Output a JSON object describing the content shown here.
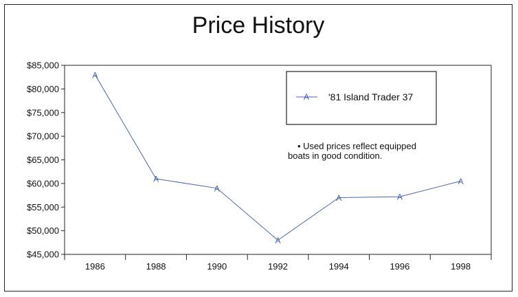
{
  "chart_data": {
    "type": "line",
    "title": "Price History",
    "xlabel": "",
    "ylabel": "",
    "categories": [
      "1986",
      "1988",
      "1990",
      "1992",
      "1994",
      "1996",
      "1998"
    ],
    "y_ticks": [
      45000,
      50000,
      55000,
      60000,
      65000,
      70000,
      75000,
      80000,
      85000
    ],
    "y_tick_labels": [
      "$45,000",
      "$50,000",
      "$55,000",
      "$60,000",
      "$65,000",
      "$70,000",
      "$75,000",
      "$80,000",
      "$85,000"
    ],
    "ylim": [
      45000,
      85000
    ],
    "grid": false,
    "legend_position": "top-right",
    "series": [
      {
        "name": "'81 Island Trader 37",
        "marker": "A",
        "color": "#4a63b0",
        "values": [
          83000,
          61000,
          59000,
          48000,
          57000,
          57200,
          60500
        ]
      }
    ],
    "annotation": [
      "• Used prices reflect equipped",
      "boats in good condition."
    ]
  }
}
